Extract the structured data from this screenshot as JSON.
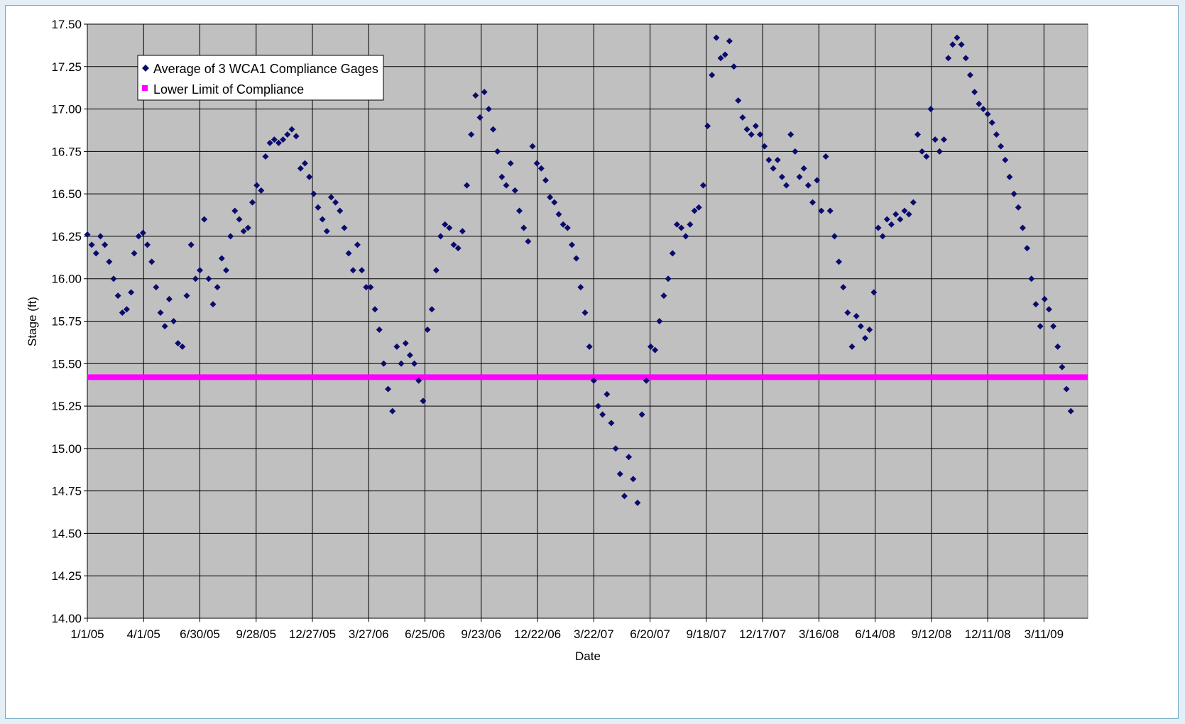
{
  "chart_data": {
    "type": "scatter",
    "title": "",
    "xlabel": "Date",
    "ylabel": "Stage (ft)",
    "ylim": [
      14.0,
      17.5
    ],
    "xlim": [
      "2005-01-01",
      "2009-05-20"
    ],
    "y_ticks": [
      "14.00",
      "14.25",
      "14.50",
      "14.75",
      "15.00",
      "15.25",
      "15.50",
      "15.75",
      "16.00",
      "16.25",
      "16.50",
      "16.75",
      "17.00",
      "17.25",
      "17.50"
    ],
    "x_ticks": [
      "1/1/05",
      "4/1/05",
      "6/30/05",
      "9/28/05",
      "12/27/05",
      "3/27/06",
      "6/25/06",
      "9/23/06",
      "12/22/06",
      "3/22/07",
      "6/20/07",
      "9/18/07",
      "12/17/07",
      "3/16/08",
      "6/14/08",
      "9/12/08",
      "12/11/08",
      "3/11/09"
    ],
    "grid": true,
    "legend_position": "top-left",
    "plot_background": "#c0c0c0",
    "series": [
      {
        "name": "Average of 3 WCA1 Compliance Gages",
        "marker": "diamond",
        "color": "#0b0b6e",
        "points": [
          [
            "2005-01-01",
            16.26
          ],
          [
            "2005-01-08",
            16.2
          ],
          [
            "2005-01-15",
            16.15
          ],
          [
            "2005-01-22",
            16.25
          ],
          [
            "2005-01-29",
            16.2
          ],
          [
            "2005-02-05",
            16.1
          ],
          [
            "2005-02-12",
            16.0
          ],
          [
            "2005-02-19",
            15.9
          ],
          [
            "2005-02-26",
            15.8
          ],
          [
            "2005-03-05",
            15.82
          ],
          [
            "2005-03-12",
            15.92
          ],
          [
            "2005-03-17",
            16.15
          ],
          [
            "2005-03-24",
            16.25
          ],
          [
            "2005-03-31",
            16.27
          ],
          [
            "2005-04-07",
            16.2
          ],
          [
            "2005-04-14",
            16.1
          ],
          [
            "2005-04-21",
            15.95
          ],
          [
            "2005-04-28",
            15.8
          ],
          [
            "2005-05-05",
            15.72
          ],
          [
            "2005-05-12",
            15.88
          ],
          [
            "2005-05-19",
            15.75
          ],
          [
            "2005-05-26",
            15.62
          ],
          [
            "2005-06-02",
            15.6
          ],
          [
            "2005-06-09",
            15.9
          ],
          [
            "2005-06-16",
            16.2
          ],
          [
            "2005-06-23",
            16.0
          ],
          [
            "2005-06-30",
            16.05
          ],
          [
            "2005-07-07",
            16.35
          ],
          [
            "2005-07-14",
            16.0
          ],
          [
            "2005-07-21",
            15.85
          ],
          [
            "2005-07-28",
            15.95
          ],
          [
            "2005-08-04",
            16.12
          ],
          [
            "2005-08-11",
            16.05
          ],
          [
            "2005-08-18",
            16.25
          ],
          [
            "2005-08-25",
            16.4
          ],
          [
            "2005-09-01",
            16.35
          ],
          [
            "2005-09-08",
            16.28
          ],
          [
            "2005-09-15",
            16.3
          ],
          [
            "2005-09-22",
            16.45
          ],
          [
            "2005-09-29",
            16.55
          ],
          [
            "2005-10-06",
            16.52
          ],
          [
            "2005-10-13",
            16.72
          ],
          [
            "2005-10-20",
            16.8
          ],
          [
            "2005-10-27",
            16.82
          ],
          [
            "2005-11-03",
            16.8
          ],
          [
            "2005-11-10",
            16.82
          ],
          [
            "2005-11-17",
            16.85
          ],
          [
            "2005-11-24",
            16.88
          ],
          [
            "2005-12-01",
            16.84
          ],
          [
            "2005-12-08",
            16.65
          ],
          [
            "2005-12-15",
            16.68
          ],
          [
            "2005-12-22",
            16.6
          ],
          [
            "2005-12-29",
            16.5
          ],
          [
            "2006-01-05",
            16.42
          ],
          [
            "2006-01-12",
            16.35
          ],
          [
            "2006-01-19",
            16.28
          ],
          [
            "2006-01-26",
            16.48
          ],
          [
            "2006-02-02",
            16.45
          ],
          [
            "2006-02-09",
            16.4
          ],
          [
            "2006-02-16",
            16.3
          ],
          [
            "2006-02-23",
            16.15
          ],
          [
            "2006-03-02",
            16.05
          ],
          [
            "2006-03-09",
            16.2
          ],
          [
            "2006-03-16",
            16.05
          ],
          [
            "2006-03-23",
            15.95
          ],
          [
            "2006-03-30",
            15.95
          ],
          [
            "2006-04-06",
            15.82
          ],
          [
            "2006-04-13",
            15.7
          ],
          [
            "2006-04-20",
            15.5
          ],
          [
            "2006-04-27",
            15.35
          ],
          [
            "2006-05-04",
            15.22
          ],
          [
            "2006-05-11",
            15.6
          ],
          [
            "2006-05-18",
            15.5
          ],
          [
            "2006-05-25",
            15.62
          ],
          [
            "2006-06-01",
            15.55
          ],
          [
            "2006-06-08",
            15.5
          ],
          [
            "2006-06-15",
            15.4
          ],
          [
            "2006-06-22",
            15.28
          ],
          [
            "2006-06-29",
            15.7
          ],
          [
            "2006-07-06",
            15.82
          ],
          [
            "2006-07-13",
            16.05
          ],
          [
            "2006-07-20",
            16.25
          ],
          [
            "2006-07-27",
            16.32
          ],
          [
            "2006-08-03",
            16.3
          ],
          [
            "2006-08-10",
            16.2
          ],
          [
            "2006-08-17",
            16.18
          ],
          [
            "2006-08-24",
            16.28
          ],
          [
            "2006-08-31",
            16.55
          ],
          [
            "2006-09-07",
            16.85
          ],
          [
            "2006-09-14",
            17.08
          ],
          [
            "2006-09-21",
            16.95
          ],
          [
            "2006-09-28",
            17.1
          ],
          [
            "2006-10-05",
            17.0
          ],
          [
            "2006-10-12",
            16.88
          ],
          [
            "2006-10-19",
            16.75
          ],
          [
            "2006-10-26",
            16.6
          ],
          [
            "2006-11-02",
            16.55
          ],
          [
            "2006-11-09",
            16.68
          ],
          [
            "2006-11-16",
            16.52
          ],
          [
            "2006-11-23",
            16.4
          ],
          [
            "2006-11-30",
            16.3
          ],
          [
            "2006-12-07",
            16.22
          ],
          [
            "2006-12-14",
            16.78
          ],
          [
            "2006-12-21",
            16.68
          ],
          [
            "2006-12-28",
            16.65
          ],
          [
            "2007-01-04",
            16.58
          ],
          [
            "2007-01-11",
            16.48
          ],
          [
            "2007-01-18",
            16.45
          ],
          [
            "2007-01-25",
            16.38
          ],
          [
            "2007-02-01",
            16.32
          ],
          [
            "2007-02-08",
            16.3
          ],
          [
            "2007-02-15",
            16.2
          ],
          [
            "2007-02-22",
            16.12
          ],
          [
            "2007-03-01",
            15.95
          ],
          [
            "2007-03-08",
            15.8
          ],
          [
            "2007-03-15",
            15.6
          ],
          [
            "2007-03-22",
            15.4
          ],
          [
            "2007-03-29",
            15.25
          ],
          [
            "2007-04-05",
            15.2
          ],
          [
            "2007-04-12",
            15.32
          ],
          [
            "2007-04-19",
            15.15
          ],
          [
            "2007-04-26",
            15.0
          ],
          [
            "2007-05-03",
            14.85
          ],
          [
            "2007-05-10",
            14.72
          ],
          [
            "2007-05-17",
            14.95
          ],
          [
            "2007-05-24",
            14.82
          ],
          [
            "2007-05-31",
            14.68
          ],
          [
            "2007-06-07",
            15.2
          ],
          [
            "2007-06-14",
            15.4
          ],
          [
            "2007-06-21",
            15.6
          ],
          [
            "2007-06-28",
            15.58
          ],
          [
            "2007-07-05",
            15.75
          ],
          [
            "2007-07-12",
            15.9
          ],
          [
            "2007-07-19",
            16.0
          ],
          [
            "2007-07-26",
            16.15
          ],
          [
            "2007-08-02",
            16.32
          ],
          [
            "2007-08-09",
            16.3
          ],
          [
            "2007-08-16",
            16.25
          ],
          [
            "2007-08-23",
            16.32
          ],
          [
            "2007-08-30",
            16.4
          ],
          [
            "2007-09-06",
            16.42
          ],
          [
            "2007-09-13",
            16.55
          ],
          [
            "2007-09-20",
            16.9
          ],
          [
            "2007-09-27",
            17.2
          ],
          [
            "2007-10-04",
            17.42
          ],
          [
            "2007-10-11",
            17.3
          ],
          [
            "2007-10-18",
            17.32
          ],
          [
            "2007-10-25",
            17.4
          ],
          [
            "2007-11-01",
            17.25
          ],
          [
            "2007-11-08",
            17.05
          ],
          [
            "2007-11-15",
            16.95
          ],
          [
            "2007-11-22",
            16.88
          ],
          [
            "2007-11-29",
            16.85
          ],
          [
            "2007-12-06",
            16.9
          ],
          [
            "2007-12-13",
            16.85
          ],
          [
            "2007-12-20",
            16.78
          ],
          [
            "2007-12-27",
            16.7
          ],
          [
            "2008-01-03",
            16.65
          ],
          [
            "2008-01-10",
            16.7
          ],
          [
            "2008-01-17",
            16.6
          ],
          [
            "2008-01-24",
            16.55
          ],
          [
            "2008-01-31",
            16.85
          ],
          [
            "2008-02-07",
            16.75
          ],
          [
            "2008-02-14",
            16.6
          ],
          [
            "2008-02-21",
            16.65
          ],
          [
            "2008-02-28",
            16.55
          ],
          [
            "2008-03-06",
            16.45
          ],
          [
            "2008-03-13",
            16.58
          ],
          [
            "2008-03-20",
            16.4
          ],
          [
            "2008-03-27",
            16.72
          ],
          [
            "2008-04-03",
            16.4
          ],
          [
            "2008-04-10",
            16.25
          ],
          [
            "2008-04-17",
            16.1
          ],
          [
            "2008-04-24",
            15.95
          ],
          [
            "2008-05-01",
            15.8
          ],
          [
            "2008-05-08",
            15.6
          ],
          [
            "2008-05-15",
            15.78
          ],
          [
            "2008-05-22",
            15.72
          ],
          [
            "2008-05-29",
            15.65
          ],
          [
            "2008-06-05",
            15.7
          ],
          [
            "2008-06-12",
            15.92
          ],
          [
            "2008-06-19",
            16.3
          ],
          [
            "2008-06-26",
            16.25
          ],
          [
            "2008-07-03",
            16.35
          ],
          [
            "2008-07-10",
            16.32
          ],
          [
            "2008-07-17",
            16.38
          ],
          [
            "2008-07-24",
            16.35
          ],
          [
            "2008-07-31",
            16.4
          ],
          [
            "2008-08-07",
            16.38
          ],
          [
            "2008-08-14",
            16.45
          ],
          [
            "2008-08-21",
            16.85
          ],
          [
            "2008-08-28",
            16.75
          ],
          [
            "2008-09-04",
            16.72
          ],
          [
            "2008-09-11",
            17.0
          ],
          [
            "2008-09-18",
            16.82
          ],
          [
            "2008-09-25",
            16.75
          ],
          [
            "2008-10-02",
            16.82
          ],
          [
            "2008-10-09",
            17.3
          ],
          [
            "2008-10-16",
            17.38
          ],
          [
            "2008-10-23",
            17.42
          ],
          [
            "2008-10-30",
            17.38
          ],
          [
            "2008-11-06",
            17.3
          ],
          [
            "2008-11-13",
            17.2
          ],
          [
            "2008-11-20",
            17.1
          ],
          [
            "2008-11-27",
            17.03
          ],
          [
            "2008-12-04",
            17.0
          ],
          [
            "2008-12-11",
            16.97
          ],
          [
            "2008-12-18",
            16.92
          ],
          [
            "2008-12-25",
            16.85
          ],
          [
            "2009-01-01",
            16.78
          ],
          [
            "2009-01-08",
            16.7
          ],
          [
            "2009-01-15",
            16.6
          ],
          [
            "2009-01-22",
            16.5
          ],
          [
            "2009-01-29",
            16.42
          ],
          [
            "2009-02-05",
            16.3
          ],
          [
            "2009-02-12",
            16.18
          ],
          [
            "2009-02-19",
            16.0
          ],
          [
            "2009-02-26",
            15.85
          ],
          [
            "2009-03-05",
            15.72
          ],
          [
            "2009-03-12",
            15.88
          ],
          [
            "2009-03-19",
            15.82
          ],
          [
            "2009-03-26",
            15.72
          ],
          [
            "2009-04-02",
            15.6
          ],
          [
            "2009-04-09",
            15.48
          ],
          [
            "2009-04-16",
            15.35
          ],
          [
            "2009-04-23",
            15.22
          ]
        ]
      },
      {
        "name": "Lower Limit of Compliance",
        "marker": "square",
        "color": "#ff00ff",
        "points": [
          [
            "2005-01-01",
            15.42
          ],
          [
            "2009-05-20",
            15.42
          ]
        ]
      }
    ]
  }
}
